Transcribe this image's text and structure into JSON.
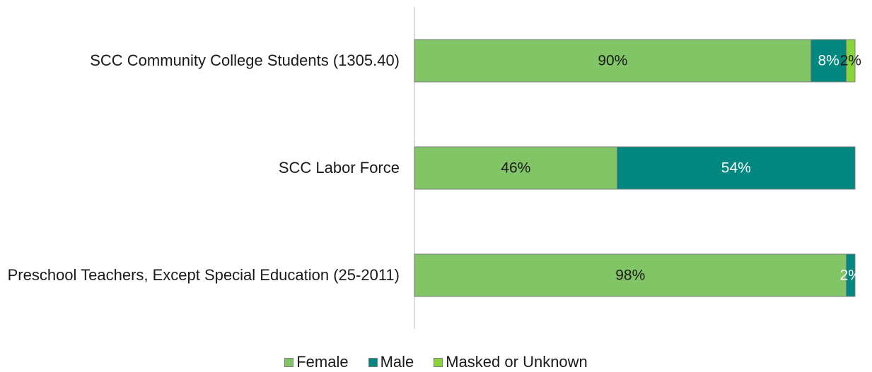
{
  "chart_data": {
    "type": "stacked-bar-horizontal",
    "categories": [
      "SCC Community College Students (1305.40)",
      "SCC Labor Force",
      "Preschool Teachers, Except Special Education (25-2011)"
    ],
    "series": [
      {
        "name": "Female",
        "color": "#82c566",
        "label_color": "#1a1a1a",
        "values": [
          90,
          46,
          98
        ],
        "value_labels": [
          "90%",
          "46%",
          "98%"
        ]
      },
      {
        "name": "Male",
        "color": "#00877f",
        "label_color": "#ffffff",
        "values": [
          8,
          54,
          2
        ],
        "value_labels": [
          "8%",
          "54%",
          "2%"
        ]
      },
      {
        "name": "Masked or Unknown",
        "color": "#88d43a",
        "label_color": "#1a1a1a",
        "values": [
          2,
          null,
          null
        ],
        "value_labels": [
          "2%",
          null,
          null
        ]
      }
    ],
    "xlim": [
      0,
      100
    ],
    "legend": "bottom"
  }
}
